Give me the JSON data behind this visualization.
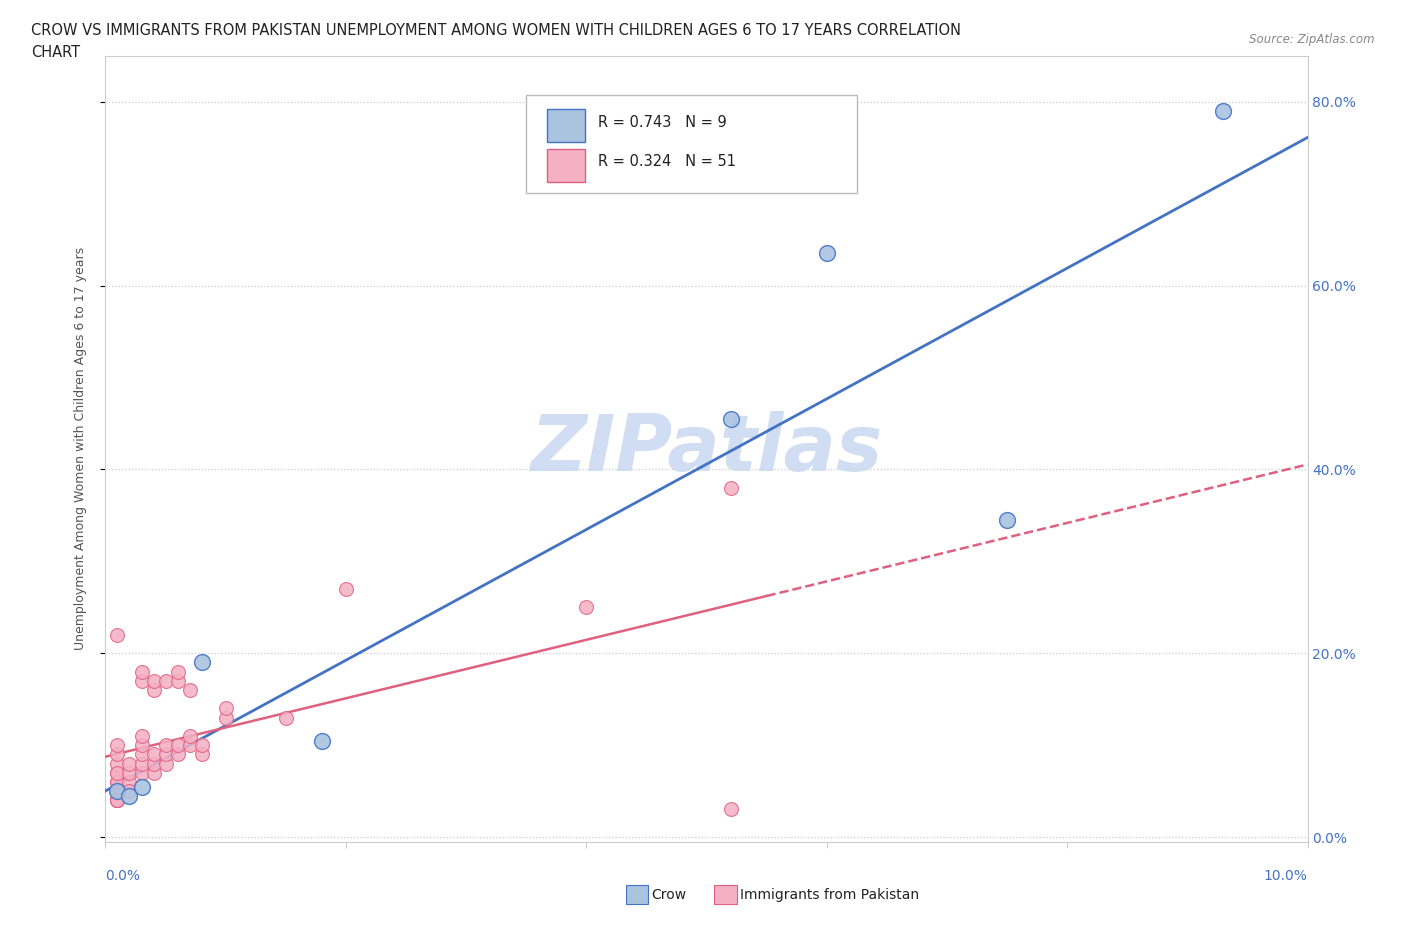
{
  "title_line1": "CROW VS IMMIGRANTS FROM PAKISTAN UNEMPLOYMENT AMONG WOMEN WITH CHILDREN AGES 6 TO 17 YEARS CORRELATION",
  "title_line2": "CHART",
  "source": "Source: ZipAtlas.com",
  "ylabel": "Unemployment Among Women with Children Ages 6 to 17 years",
  "xlim": [
    0.0,
    0.1
  ],
  "ylim": [
    -0.005,
    0.85
  ],
  "yticks": [
    0.0,
    0.2,
    0.4,
    0.6,
    0.8
  ],
  "ytick_labels": [
    "0.0%",
    "20.0%",
    "40.0%",
    "60.0%",
    "80.0%"
  ],
  "xticks": [
    0.0,
    0.02,
    0.04,
    0.06,
    0.08,
    0.1
  ],
  "crow_color": "#aac4e0",
  "crow_edge_color": "#4472c4",
  "pakistan_color": "#f4b0c4",
  "pakistan_edge_color": "#e06080",
  "crow_line_color": "#4472c4",
  "pakistan_line_color": "#e06080",
  "legend_crow_R": "0.743",
  "legend_crow_N": "9",
  "legend_pakistan_R": "0.324",
  "legend_pakistan_N": "51",
  "watermark": "ZIPatlas",
  "watermark_color": "#c8d8f0",
  "crow_points_x": [
    0.001,
    0.002,
    0.003,
    0.008,
    0.018,
    0.052,
    0.06,
    0.075,
    0.093
  ],
  "crow_points_y": [
    0.05,
    0.045,
    0.055,
    0.19,
    0.105,
    0.455,
    0.635,
    0.345,
    0.79
  ],
  "pakistan_points_x": [
    0.001,
    0.001,
    0.001,
    0.001,
    0.001,
    0.001,
    0.001,
    0.001,
    0.001,
    0.001,
    0.001,
    0.001,
    0.001,
    0.001,
    0.001,
    0.002,
    0.002,
    0.002,
    0.002,
    0.003,
    0.003,
    0.003,
    0.003,
    0.003,
    0.003,
    0.003,
    0.004,
    0.004,
    0.004,
    0.004,
    0.004,
    0.005,
    0.005,
    0.005,
    0.005,
    0.006,
    0.006,
    0.006,
    0.006,
    0.007,
    0.007,
    0.007,
    0.008,
    0.008,
    0.01,
    0.01,
    0.015,
    0.02,
    0.04,
    0.052,
    0.052
  ],
  "pakistan_points_y": [
    0.04,
    0.05,
    0.06,
    0.07,
    0.08,
    0.09,
    0.1,
    0.05,
    0.06,
    0.07,
    0.04,
    0.04,
    0.04,
    0.04,
    0.22,
    0.06,
    0.07,
    0.08,
    0.05,
    0.07,
    0.08,
    0.09,
    0.1,
    0.11,
    0.17,
    0.18,
    0.07,
    0.08,
    0.09,
    0.16,
    0.17,
    0.08,
    0.09,
    0.1,
    0.17,
    0.09,
    0.1,
    0.17,
    0.18,
    0.1,
    0.11,
    0.16,
    0.09,
    0.1,
    0.13,
    0.14,
    0.13,
    0.27,
    0.25,
    0.38,
    0.03
  ],
  "background_color": "#ffffff",
  "grid_color": "#cccccc",
  "spine_color": "#cccccc"
}
